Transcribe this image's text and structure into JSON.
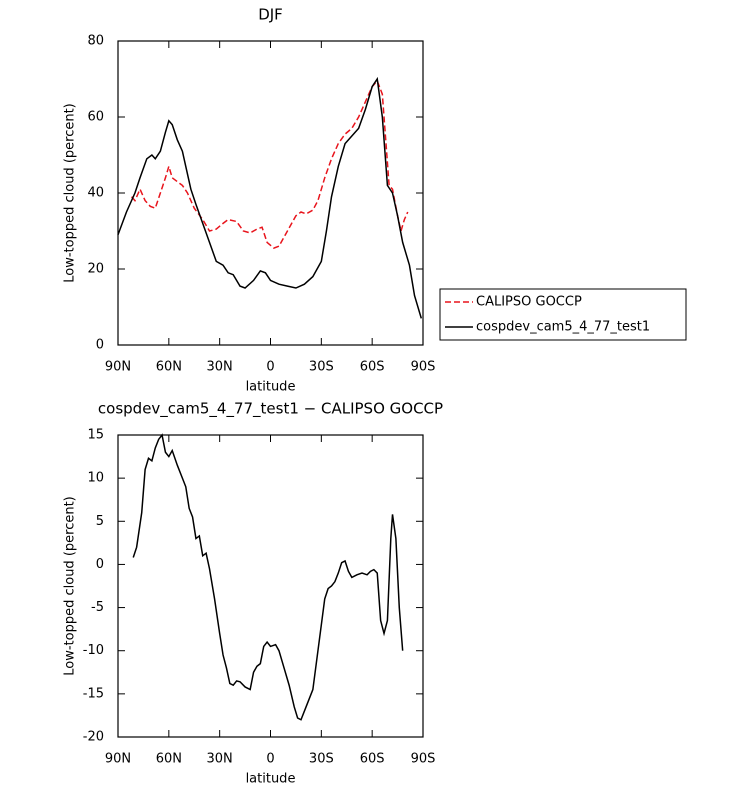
{
  "chart_data": [
    {
      "type": "line",
      "title": "DJF",
      "xlabel": "latitude",
      "ylabel": "Low-topped cloud (percent)",
      "xlim": [
        90,
        -90
      ],
      "ylim": [
        0,
        80
      ],
      "xticks": [
        {
          "value": 90,
          "label": "90N"
        },
        {
          "value": 60,
          "label": "60N"
        },
        {
          "value": 30,
          "label": "30N"
        },
        0,
        {
          "value": -30,
          "label": "30S"
        },
        {
          "value": -60,
          "label": "60S"
        },
        {
          "value": -90,
          "label": "90S"
        }
      ],
      "yticks": [
        0,
        20,
        40,
        60,
        80
      ],
      "series": [
        {
          "name": "CALIPSO GOCCP",
          "color": "#e8141c",
          "dashed": true,
          "x": [
            82,
            80,
            77,
            74,
            71,
            68,
            65,
            62,
            60,
            58,
            55,
            52,
            49,
            45,
            40,
            36,
            32,
            28,
            25,
            20,
            16,
            12,
            8,
            5,
            2,
            -2,
            -5,
            -10,
            -15,
            -18,
            -21,
            -25,
            -28,
            -32,
            -36,
            -40,
            -44,
            -48,
            -52,
            -56,
            -60,
            -63,
            -66,
            -70,
            -72,
            -75,
            -77,
            -79,
            -81
          ],
          "values": [
            39,
            38,
            41,
            38,
            36.5,
            36,
            40,
            44,
            47,
            44,
            43,
            42,
            40,
            36,
            33,
            30,
            30.5,
            32,
            33,
            32.5,
            30,
            29.5,
            30.5,
            31,
            27,
            25.5,
            26,
            30,
            34,
            35,
            34.5,
            35.5,
            38,
            44,
            49,
            53,
            55.5,
            57,
            60,
            64,
            68,
            69.5,
            66,
            42,
            41,
            34,
            30,
            33,
            35
          ]
        },
        {
          "name": "cospdev_cam5_4_77_test1",
          "color": "#000000",
          "dashed": false,
          "x": [
            90,
            85,
            80,
            77,
            73,
            70,
            68,
            65,
            62,
            60,
            58,
            55,
            52,
            50,
            47,
            44,
            40,
            36,
            32,
            28,
            25,
            22,
            18,
            15,
            10,
            6,
            3,
            0,
            -5,
            -10,
            -15,
            -20,
            -25,
            -30,
            -33,
            -36,
            -40,
            -44,
            -48,
            -52,
            -56,
            -60,
            -63,
            -66,
            -69,
            -72,
            -75,
            -78,
            -82,
            -85,
            -89
          ],
          "values": [
            29,
            35,
            40,
            44,
            49,
            50,
            49,
            51,
            56,
            59,
            58,
            54,
            51,
            47,
            41,
            37,
            32,
            27,
            22,
            21,
            19,
            18.5,
            15.5,
            15,
            17,
            19.5,
            19,
            17,
            16,
            15.5,
            15,
            16,
            18,
            22,
            30,
            39,
            47,
            53,
            55,
            57,
            62,
            68,
            70,
            60,
            42,
            40,
            34,
            27,
            21,
            13,
            7
          ]
        }
      ]
    },
    {
      "type": "line",
      "title": "cospdev_cam5_4_77_test1 − CALIPSO GOCCP",
      "xlabel": "latitude",
      "ylabel": "Low-topped cloud (percent)",
      "xlim": [
        90,
        -90
      ],
      "ylim": [
        -20,
        15
      ],
      "xticks": [
        {
          "value": 90,
          "label": "90N"
        },
        {
          "value": 60,
          "label": "60N"
        },
        {
          "value": 30,
          "label": "30N"
        },
        0,
        {
          "value": -30,
          "label": "30S"
        },
        {
          "value": -60,
          "label": "60S"
        },
        {
          "value": -90,
          "label": "90S"
        }
      ],
      "yticks": [
        -20,
        -15,
        -10,
        -5,
        0,
        5,
        10,
        15
      ],
      "series": [
        {
          "color": "#000000",
          "dashed": false,
          "x": [
            81,
            79,
            76,
            74,
            72,
            70,
            68,
            66,
            64,
            62,
            60,
            58,
            55,
            52,
            50,
            48,
            46,
            44,
            42,
            40,
            38,
            36,
            33,
            30,
            28,
            26,
            24,
            22,
            20,
            18,
            15,
            12,
            10,
            8,
            6,
            4,
            2,
            0,
            -3,
            -5,
            -8,
            -11,
            -14,
            -16,
            -18,
            -21,
            -25,
            -28,
            -30,
            -32,
            -34,
            -36,
            -38,
            -40,
            -42,
            -44,
            -46,
            -48,
            -51,
            -54,
            -57,
            -59,
            -61,
            -63,
            -65,
            -67,
            -69,
            -71,
            -72,
            -74,
            -76,
            -78
          ],
          "values": [
            0.8,
            2,
            6,
            11,
            12.3,
            12,
            13.5,
            14.5,
            15,
            13,
            12.5,
            13.2,
            11.5,
            10,
            9,
            6.5,
            5.5,
            3,
            3.3,
            1,
            1.3,
            -0.5,
            -4,
            -8,
            -10.5,
            -12,
            -13.8,
            -14,
            -13.5,
            -13.6,
            -14.2,
            -14.5,
            -12.5,
            -11.8,
            -11.5,
            -9.5,
            -9,
            -9.5,
            -9.3,
            -10,
            -12,
            -14,
            -16.5,
            -17.8,
            -18,
            -16.5,
            -14.5,
            -10,
            -7,
            -4,
            -2.8,
            -2.5,
            -2,
            -1,
            0.2,
            0.4,
            -0.8,
            -1.5,
            -1.2,
            -1,
            -1.2,
            -0.8,
            -0.6,
            -1,
            -6.5,
            -8,
            -6.5,
            3,
            5.8,
            3,
            -5,
            -10
          ]
        }
      ]
    }
  ]
}
